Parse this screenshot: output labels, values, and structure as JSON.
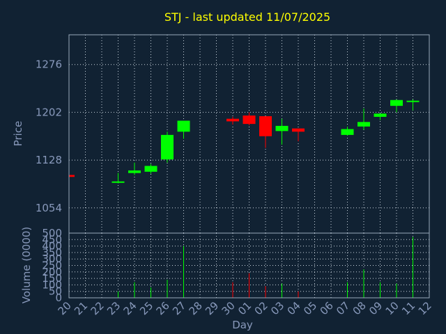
{
  "chart_data": {
    "type": "candlestick",
    "title": "STJ - last updated 11/07/2025",
    "xlabel": "Day",
    "price_panel": {
      "ylabel": "Price",
      "yticks": [
        1054,
        1128,
        1202,
        1276
      ],
      "ylim": [
        1015,
        1322
      ]
    },
    "volume_panel": {
      "ylabel": "Volume (0000)",
      "yticks": [
        0,
        50,
        100,
        150,
        200,
        250,
        300,
        350,
        400,
        450,
        500
      ],
      "ylim": [
        0,
        500
      ]
    },
    "x_ticks": [
      "20",
      "21",
      "22",
      "23",
      "24",
      "25",
      "26",
      "27",
      "28",
      "29",
      "30",
      "01",
      "02",
      "03",
      "04",
      "05",
      "06",
      "07",
      "08",
      "09",
      "10",
      "11",
      "12"
    ],
    "candles": [
      {
        "day_index": 0,
        "open": 1105,
        "high": 1105,
        "low": 1102,
        "close": 1102,
        "volume": 0
      },
      {
        "day_index": 3,
        "open": 1093,
        "high": 1108,
        "low": 1092,
        "close": 1095,
        "volume": 50
      },
      {
        "day_index": 4,
        "open": 1108,
        "high": 1124,
        "low": 1105,
        "close": 1112,
        "volume": 120
      },
      {
        "day_index": 5,
        "open": 1110,
        "high": 1122,
        "low": 1107,
        "close": 1119,
        "volume": 80
      },
      {
        "day_index": 6,
        "open": 1129,
        "high": 1172,
        "low": 1124,
        "close": 1167,
        "volume": 140
      },
      {
        "day_index": 7,
        "open": 1172,
        "high": 1189,
        "low": 1161,
        "close": 1189,
        "volume": 400
      },
      {
        "day_index": 10,
        "open": 1192,
        "high": 1195,
        "low": 1183,
        "close": 1188,
        "volume": 120
      },
      {
        "day_index": 11,
        "open": 1197,
        "high": 1202,
        "low": 1182,
        "close": 1184,
        "volume": 190
      },
      {
        "day_index": 12,
        "open": 1196,
        "high": 1196,
        "low": 1147,
        "close": 1165,
        "volume": 90
      },
      {
        "day_index": 13,
        "open": 1173,
        "high": 1192,
        "low": 1152,
        "close": 1181,
        "volume": 110
      },
      {
        "day_index": 14,
        "open": 1177,
        "high": 1177,
        "low": 1157,
        "close": 1172,
        "volume": 50
      },
      {
        "day_index": 17,
        "open": 1167,
        "high": 1180,
        "low": 1166,
        "close": 1176,
        "volume": 120
      },
      {
        "day_index": 18,
        "open": 1180,
        "high": 1208,
        "low": 1175,
        "close": 1187,
        "volume": 220
      },
      {
        "day_index": 19,
        "open": 1195,
        "high": 1200,
        "low": 1190,
        "close": 1200,
        "volume": 120
      },
      {
        "day_index": 20,
        "open": 1212,
        "high": 1222,
        "low": 1202,
        "close": 1221,
        "volume": 110
      },
      {
        "day_index": 21,
        "open": 1218,
        "high": 1222,
        "low": 1205,
        "close": 1220,
        "volume": 470
      }
    ],
    "colors": {
      "background": "#112233",
      "up": "#00ff00",
      "down": "#ff0000",
      "title": "#ffff00",
      "axis_text": "#8899bb",
      "frame": "#99aabb",
      "grid": "#ccd6e0"
    },
    "grid": true
  }
}
